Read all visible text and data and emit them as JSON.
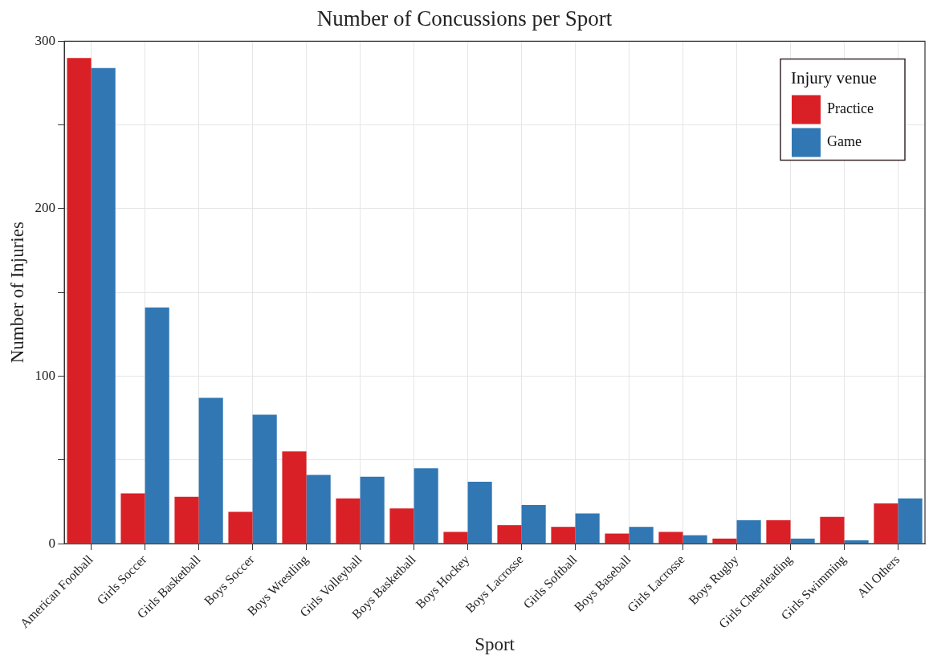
{
  "chart_data": {
    "type": "bar",
    "title": "Number of Concussions per Sport",
    "xlabel": "Sport",
    "ylabel": "Number of Injuries",
    "legend_title": "Injury venue",
    "categories": [
      "American Football",
      "Girls Soccer",
      "Girls Basketball",
      "Boys Soccer",
      "Boys Wrestling",
      "Girls Volleyball",
      "Boys Basketball",
      "Boys Hockey",
      "Boys Lacrosse",
      "Girls Softball",
      "Boys Baseball",
      "Girls Lacrosse",
      "Boys Rugby",
      "Girls Cheerleading",
      "Girls Swimming",
      "All Others"
    ],
    "series": [
      {
        "name": "Practice",
        "color": "#d92026",
        "values": [
          290,
          30,
          28,
          19,
          55,
          27,
          21,
          7,
          11,
          10,
          6,
          7,
          3,
          14,
          16,
          24
        ]
      },
      {
        "name": "Game",
        "color": "#3077b4",
        "values": [
          284,
          141,
          87,
          77,
          41,
          40,
          45,
          37,
          23,
          18,
          10,
          5,
          14,
          3,
          2,
          27
        ]
      }
    ],
    "ylim": [
      0,
      300
    ],
    "yticks": [
      0,
      {
        "value": 50,
        "label": null
      },
      100,
      {
        "value": 150,
        "label": null
      },
      200,
      {
        "value": 250,
        "label": null
      },
      300
    ],
    "grid": true,
    "legend": "top right"
  }
}
